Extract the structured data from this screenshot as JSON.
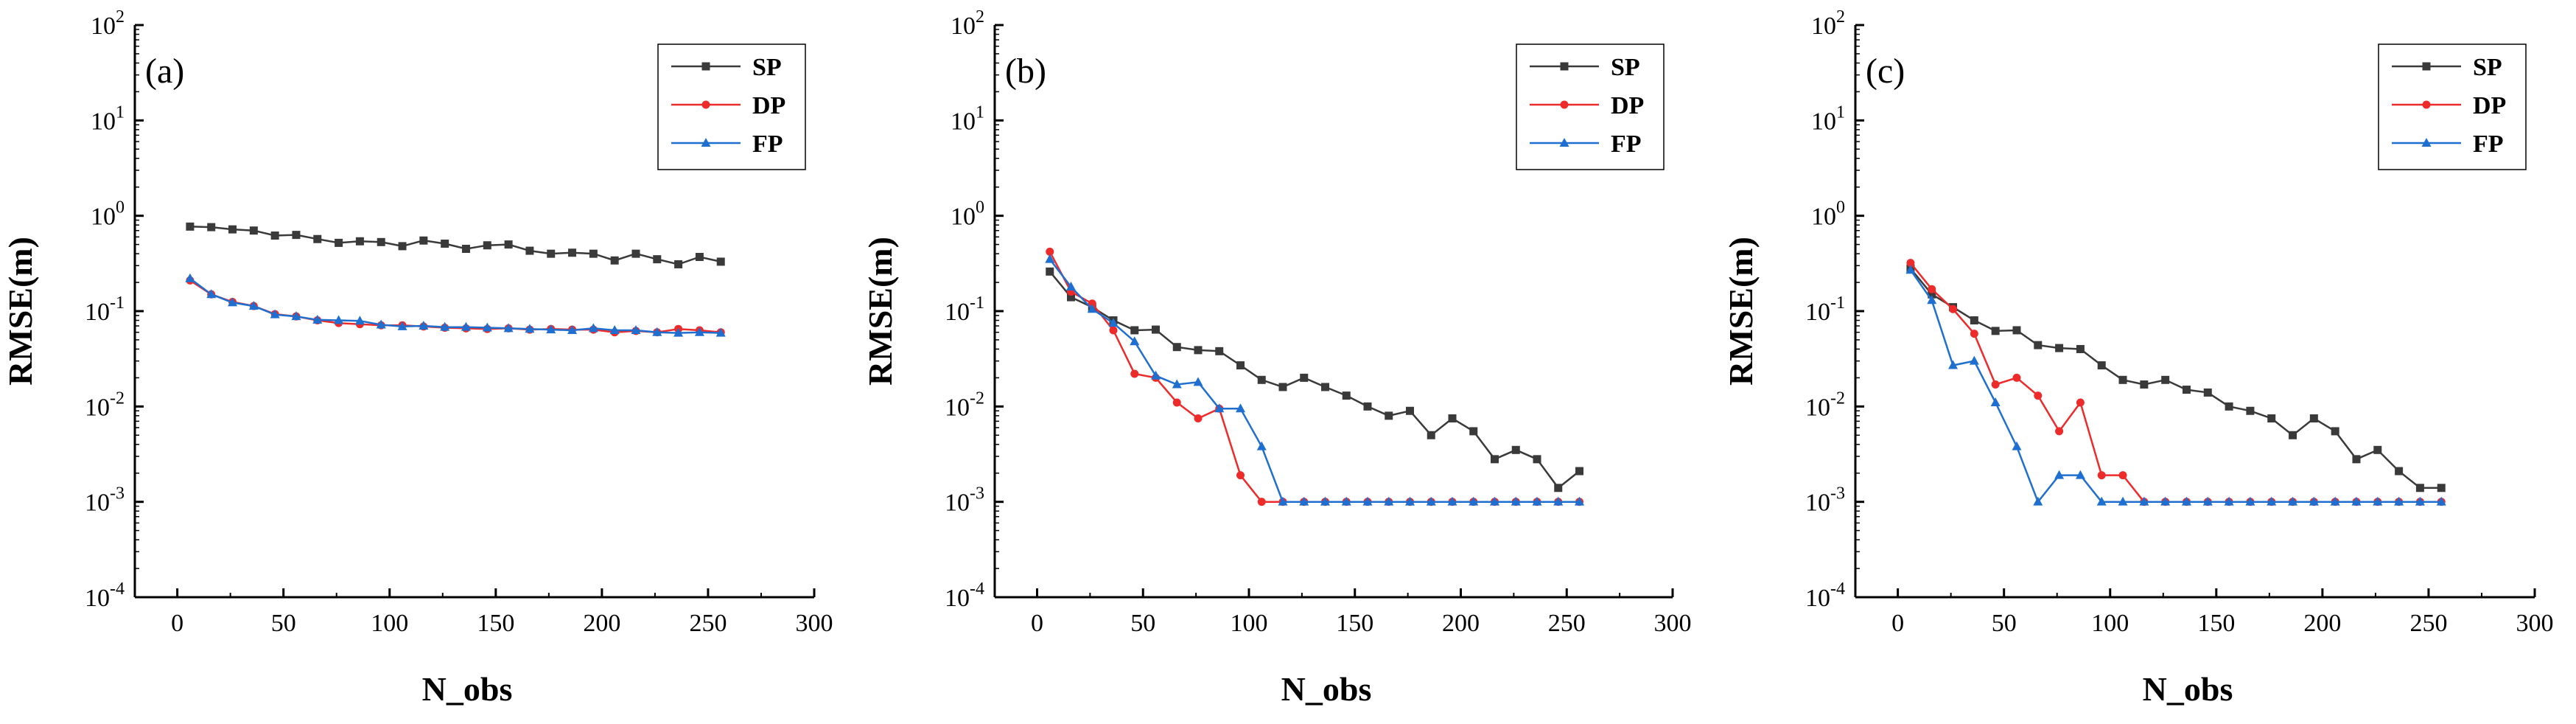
{
  "colors": {
    "SP": "#3a3a3a",
    "DP": "#ee2b2b",
    "FP": "#1f6fd0"
  },
  "chart_data": [
    {
      "type": "line",
      "panel_label": "(a)",
      "xlabel": "N_obs",
      "ylabel": "RMSE(m)",
      "xlim": [
        -20,
        300
      ],
      "ylim": [
        0.0001,
        100
      ],
      "yscale": "log",
      "xticks": [
        0,
        50,
        100,
        150,
        200,
        250,
        300
      ],
      "xtick_labels": [
        "0",
        "50",
        "100",
        "150",
        "200",
        "250",
        "300"
      ],
      "yticks": [
        0.0001,
        0.001,
        0.01,
        0.1,
        1,
        10,
        100
      ],
      "ytick_labels": [
        {
          "b": "10",
          "e": "-4"
        },
        {
          "b": "10",
          "e": "-3"
        },
        {
          "b": "10",
          "e": "-2"
        },
        {
          "b": "10",
          "e": "-1"
        },
        {
          "b": "10",
          "e": "0"
        },
        {
          "b": "10",
          "e": "1"
        },
        {
          "b": "10",
          "e": "2"
        }
      ],
      "legend_position": "top-right",
      "series": [
        {
          "name": "SP",
          "marker": "square",
          "x": [
            6,
            16,
            26,
            36,
            46,
            56,
            66,
            76,
            86,
            96,
            106,
            116,
            126,
            136,
            146,
            156,
            166,
            176,
            186,
            196,
            206,
            216,
            226,
            236,
            246,
            256
          ],
          "values": [
            0.77,
            0.76,
            0.72,
            0.7,
            0.62,
            0.63,
            0.57,
            0.52,
            0.54,
            0.53,
            0.48,
            0.55,
            0.51,
            0.45,
            0.49,
            0.5,
            0.43,
            0.4,
            0.41,
            0.4,
            0.34,
            0.4,
            0.35,
            0.31,
            0.37,
            0.33
          ]
        },
        {
          "name": "DP",
          "marker": "circle",
          "x": [
            6,
            16,
            26,
            36,
            46,
            56,
            66,
            76,
            86,
            96,
            106,
            116,
            126,
            136,
            146,
            156,
            166,
            176,
            186,
            196,
            206,
            216,
            226,
            236,
            246,
            256
          ],
          "values": [
            0.21,
            0.15,
            0.125,
            0.113,
            0.093,
            0.088,
            0.08,
            0.075,
            0.073,
            0.071,
            0.071,
            0.069,
            0.067,
            0.066,
            0.065,
            0.066,
            0.064,
            0.065,
            0.064,
            0.064,
            0.06,
            0.062,
            0.06,
            0.065,
            0.063,
            0.06
          ]
        },
        {
          "name": "FP",
          "marker": "triangle",
          "x": [
            6,
            16,
            26,
            36,
            46,
            56,
            66,
            76,
            86,
            96,
            106,
            116,
            126,
            136,
            146,
            156,
            166,
            176,
            186,
            196,
            206,
            216,
            226,
            236,
            246,
            256
          ],
          "values": [
            0.22,
            0.15,
            0.123,
            0.113,
            0.092,
            0.088,
            0.081,
            0.08,
            0.079,
            0.072,
            0.069,
            0.07,
            0.068,
            0.068,
            0.067,
            0.066,
            0.065,
            0.064,
            0.063,
            0.066,
            0.063,
            0.063,
            0.06,
            0.059,
            0.06,
            0.059
          ]
        }
      ]
    },
    {
      "type": "line",
      "panel_label": "(b)",
      "xlabel": "N_obs",
      "ylabel": "RMSE(m)",
      "xlim": [
        -20,
        300
      ],
      "ylim": [
        0.0001,
        100
      ],
      "yscale": "log",
      "xticks": [
        0,
        50,
        100,
        150,
        200,
        250,
        300
      ],
      "xtick_labels": [
        "0",
        "50",
        "100",
        "150",
        "200",
        "250",
        "300"
      ],
      "yticks": [
        0.0001,
        0.001,
        0.01,
        0.1,
        1,
        10,
        100
      ],
      "ytick_labels": [
        {
          "b": "10",
          "e": "-4"
        },
        {
          "b": "10",
          "e": "-3"
        },
        {
          "b": "10",
          "e": "-2"
        },
        {
          "b": "10",
          "e": "-1"
        },
        {
          "b": "10",
          "e": "0"
        },
        {
          "b": "10",
          "e": "1"
        },
        {
          "b": "10",
          "e": "2"
        }
      ],
      "legend_position": "top-right",
      "series": [
        {
          "name": "SP",
          "marker": "square",
          "x": [
            6,
            16,
            26,
            36,
            46,
            56,
            66,
            76,
            86,
            96,
            106,
            116,
            126,
            136,
            146,
            156,
            166,
            176,
            186,
            196,
            206,
            216,
            226,
            236,
            246,
            256
          ],
          "values": [
            0.26,
            0.14,
            0.11,
            0.08,
            0.063,
            0.064,
            0.042,
            0.039,
            0.038,
            0.027,
            0.019,
            0.016,
            0.02,
            0.016,
            0.013,
            0.01,
            0.008,
            0.009,
            0.005,
            0.0075,
            0.0055,
            0.0028,
            0.0035,
            0.0028,
            0.0014,
            0.0021
          ]
        },
        {
          "name": "DP",
          "marker": "circle",
          "x": [
            6,
            16,
            26,
            36,
            46,
            56,
            66,
            76,
            86,
            96,
            106,
            116,
            126,
            136,
            146,
            156,
            166,
            176,
            186,
            196,
            206,
            216,
            226,
            236,
            246,
            256
          ],
          "values": [
            0.42,
            0.16,
            0.12,
            0.063,
            0.022,
            0.02,
            0.011,
            0.0075,
            0.0095,
            0.0019,
            0.001,
            0.001,
            0.001,
            0.001,
            0.001,
            0.001,
            0.001,
            0.001,
            0.001,
            0.001,
            0.001,
            0.001,
            0.001,
            0.001,
            0.001,
            0.001
          ]
        },
        {
          "name": "FP",
          "marker": "triangle",
          "x": [
            6,
            16,
            26,
            36,
            46,
            56,
            66,
            76,
            86,
            96,
            106,
            116,
            126,
            136,
            146,
            156,
            166,
            176,
            186,
            196,
            206,
            216,
            226,
            236,
            246,
            256
          ],
          "values": [
            0.35,
            0.18,
            0.105,
            0.075,
            0.048,
            0.021,
            0.017,
            0.018,
            0.0095,
            0.0095,
            0.0038,
            0.001,
            0.001,
            0.001,
            0.001,
            0.001,
            0.001,
            0.001,
            0.001,
            0.001,
            0.001,
            0.001,
            0.001,
            0.001,
            0.001,
            0.001
          ]
        }
      ]
    },
    {
      "type": "line",
      "panel_label": "(c)",
      "xlabel": "N_obs",
      "ylabel": "RMSE(m)",
      "xlim": [
        -20,
        300
      ],
      "ylim": [
        0.0001,
        100
      ],
      "yscale": "log",
      "xticks": [
        0,
        50,
        100,
        150,
        200,
        250,
        300
      ],
      "xtick_labels": [
        "0",
        "50",
        "100",
        "150",
        "200",
        "250",
        "300"
      ],
      "yticks": [
        0.0001,
        0.001,
        0.01,
        0.1,
        1,
        10,
        100
      ],
      "ytick_labels": [
        {
          "b": "10",
          "e": "-4"
        },
        {
          "b": "10",
          "e": "-3"
        },
        {
          "b": "10",
          "e": "-2"
        },
        {
          "b": "10",
          "e": "-1"
        },
        {
          "b": "10",
          "e": "0"
        },
        {
          "b": "10",
          "e": "1"
        },
        {
          "b": "10",
          "e": "2"
        }
      ],
      "legend_position": "top-right",
      "series": [
        {
          "name": "SP",
          "marker": "square",
          "x": [
            6,
            16,
            26,
            36,
            46,
            56,
            66,
            76,
            86,
            96,
            106,
            116,
            126,
            136,
            146,
            156,
            166,
            176,
            186,
            196,
            206,
            216,
            226,
            236,
            246,
            256
          ],
          "values": [
            0.28,
            0.15,
            0.11,
            0.08,
            0.062,
            0.063,
            0.044,
            0.041,
            0.04,
            0.027,
            0.019,
            0.017,
            0.019,
            0.015,
            0.014,
            0.01,
            0.009,
            0.0075,
            0.005,
            0.0075,
            0.0055,
            0.0028,
            0.0035,
            0.0021,
            0.0014,
            0.0014
          ]
        },
        {
          "name": "DP",
          "marker": "circle",
          "x": [
            6,
            16,
            26,
            36,
            46,
            56,
            66,
            76,
            86,
            96,
            106,
            116,
            126,
            136,
            146,
            156,
            166,
            176,
            186,
            196,
            206,
            216,
            226,
            236,
            246,
            256
          ],
          "values": [
            0.32,
            0.17,
            0.105,
            0.058,
            0.017,
            0.02,
            0.013,
            0.0055,
            0.011,
            0.0019,
            0.0019,
            0.001,
            0.001,
            0.001,
            0.001,
            0.001,
            0.001,
            0.001,
            0.001,
            0.001,
            0.001,
            0.001,
            0.001,
            0.001,
            0.001,
            0.001
          ]
        },
        {
          "name": "FP",
          "marker": "triangle",
          "x": [
            6,
            16,
            26,
            36,
            46,
            56,
            66,
            76,
            86,
            96,
            106,
            116,
            126,
            136,
            146,
            156,
            166,
            176,
            186,
            196,
            206,
            216,
            226,
            236,
            246,
            256
          ],
          "values": [
            0.27,
            0.13,
            0.027,
            0.03,
            0.011,
            0.0038,
            0.001,
            0.0019,
            0.0019,
            0.001,
            0.001,
            0.001,
            0.001,
            0.001,
            0.001,
            0.001,
            0.001,
            0.001,
            0.001,
            0.001,
            0.001,
            0.001,
            0.001,
            0.001,
            0.001,
            0.001
          ]
        }
      ]
    }
  ]
}
